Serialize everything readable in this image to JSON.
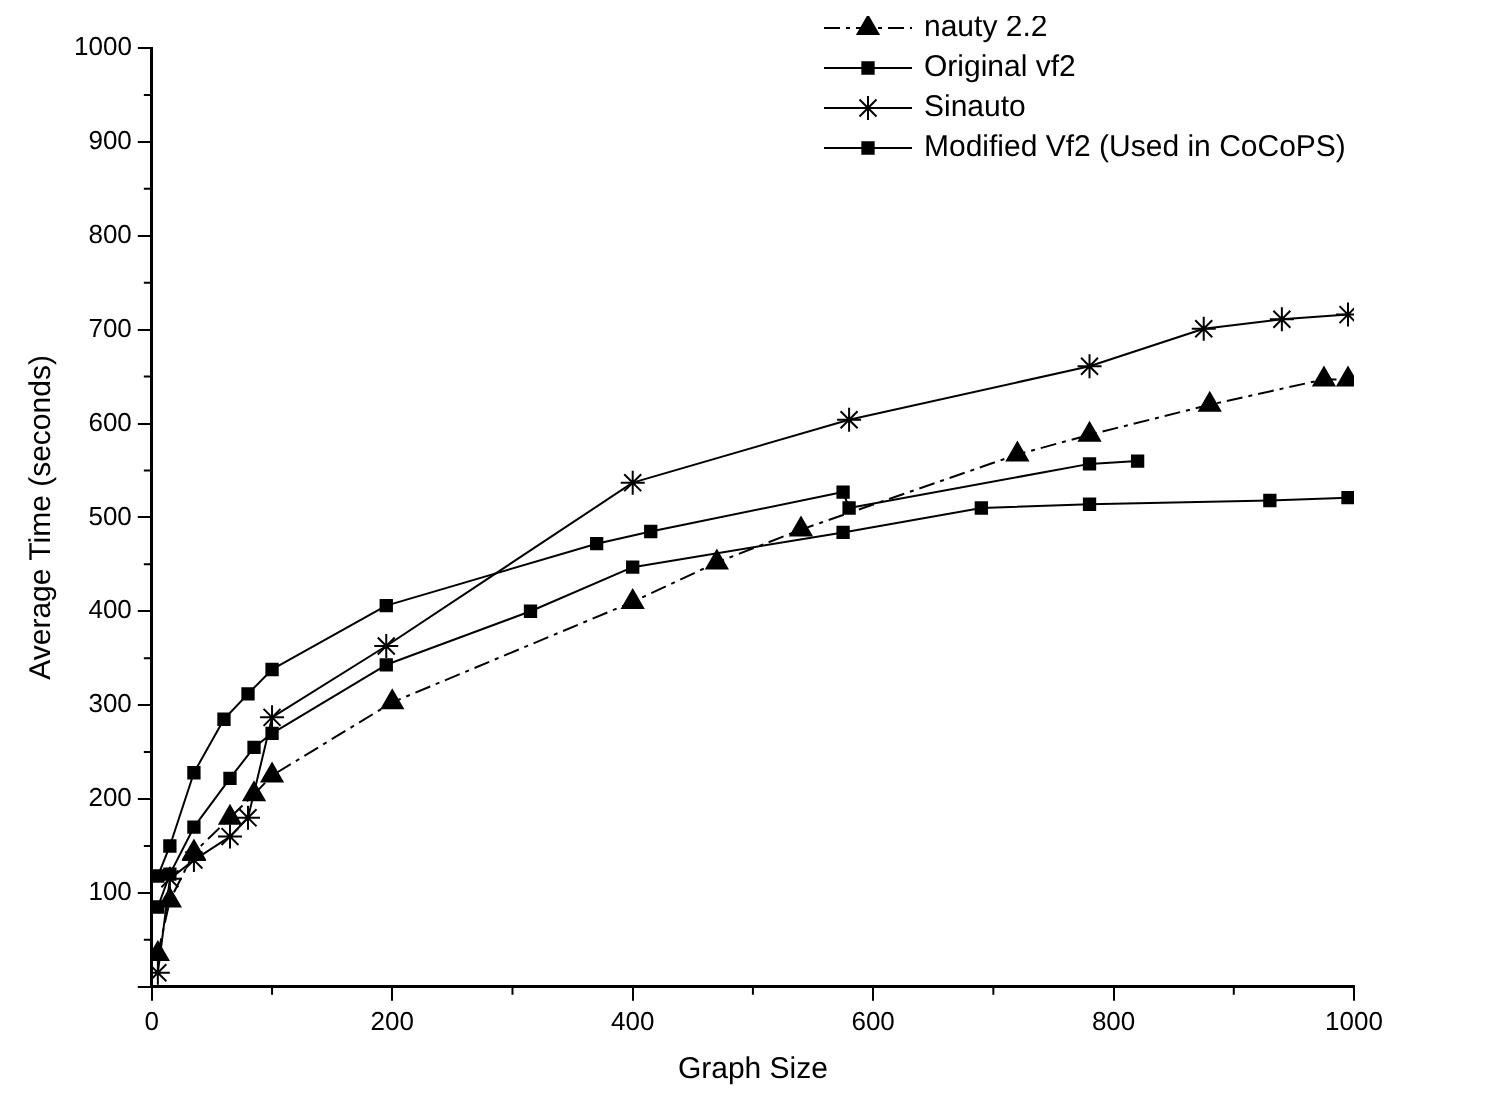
{
  "chart_data": {
    "type": "line",
    "xlabel": "Graph Size",
    "ylabel": "Average Time (seconds)",
    "xlim": [
      0,
      1000
    ],
    "xticks": [
      0,
      200,
      400,
      600,
      800,
      1000
    ],
    "ylim": [
      0,
      1000
    ],
    "yticks": [
      {
        "value": 0,
        "label": null
      },
      100,
      200,
      300,
      400,
      500,
      600,
      700,
      800,
      900,
      1000
    ],
    "grid": false,
    "legend": "top right",
    "series": [
      {
        "name": "nauty 2.2",
        "color": "#000000",
        "marker": "triangle",
        "line_style": "dashdot",
        "x": [
          5,
          15,
          35,
          65,
          85,
          100,
          200,
          400,
          470,
          540,
          720,
          780,
          880,
          975,
          995
        ],
        "values": [
          35,
          92,
          143,
          180,
          205,
          225,
          303,
          410,
          452,
          487,
          567,
          588,
          620,
          647,
          647
        ]
      },
      {
        "name": "Original vf2",
        "color": "#000000",
        "marker": "square",
        "line_style": "solid",
        "x": [
          5,
          15,
          35,
          65,
          85,
          100,
          195,
          315,
          400,
          575,
          690,
          780,
          930,
          995
        ],
        "values": [
          85,
          120,
          170,
          222,
          255,
          270,
          343,
          400,
          447,
          484,
          510,
          514,
          518,
          521
        ]
      },
      {
        "name": "Sinauto",
        "color": "#000000",
        "marker": "cross",
        "line_style": "solid",
        "x": [
          5,
          15,
          35,
          65,
          80,
          100,
          195,
          400,
          580,
          780,
          875,
          940,
          995
        ],
        "values": [
          15,
          115,
          135,
          160,
          180,
          287,
          363,
          537,
          604,
          661,
          701,
          711,
          716
        ]
      },
      {
        "name": "Modified Vf2 (Used in CoCoPS)",
        "color": "#000000",
        "marker": "square",
        "line_style": "solid",
        "x": [
          5,
          15,
          35,
          60,
          80,
          100,
          195,
          370,
          415,
          575,
          580,
          780,
          820
        ],
        "values": [
          118,
          150,
          228,
          285,
          312,
          338,
          406,
          472,
          485,
          527,
          510,
          557,
          560
        ]
      }
    ]
  }
}
